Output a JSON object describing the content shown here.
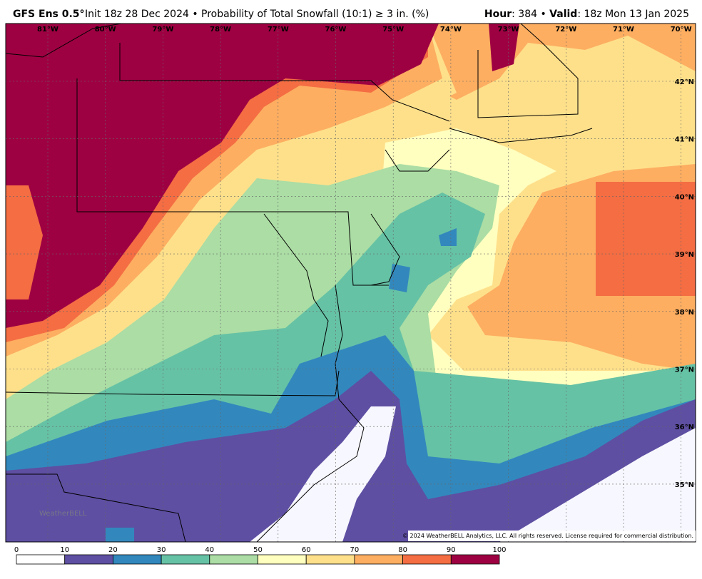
{
  "header": {
    "model": "GFS Ens 0.5°",
    "title": "Init 18z 28 Dec 2024 • Probability of Total Snowfall (10:1) ≥ 3 in. (%)",
    "hour_label": "Hour",
    "hour": ": 384 • ",
    "valid_label": "Valid",
    "valid": ": 18z Mon 13 Jan 2025"
  },
  "map": {
    "lon_labels": [
      "81°W",
      "80°W",
      "79°W",
      "78°W",
      "77°W",
      "76°W",
      "75°W",
      "74°W",
      "73°W",
      "72°W",
      "71°W",
      "70°W"
    ],
    "lat_labels": [
      "42°N",
      "41°N",
      "40°N",
      "39°N",
      "38°N",
      "37°N",
      "36°N",
      "35°N"
    ],
    "copyright": "© 2024 WeatherBELL Analytics, LLC. All rights reserved. License required for commercial distribution.",
    "logo": "WeatherBELL"
  },
  "colorbar": {
    "ticks": [
      0,
      10,
      20,
      30,
      40,
      50,
      60,
      70,
      80,
      90,
      100
    ],
    "colors": [
      "#ffffff",
      "#5e4fa2",
      "#3288bd",
      "#66c2a5",
      "#abdda4",
      "#ffffbf",
      "#fee08b",
      "#fdae61",
      "#f46d43",
      "#9e0142"
    ]
  }
}
